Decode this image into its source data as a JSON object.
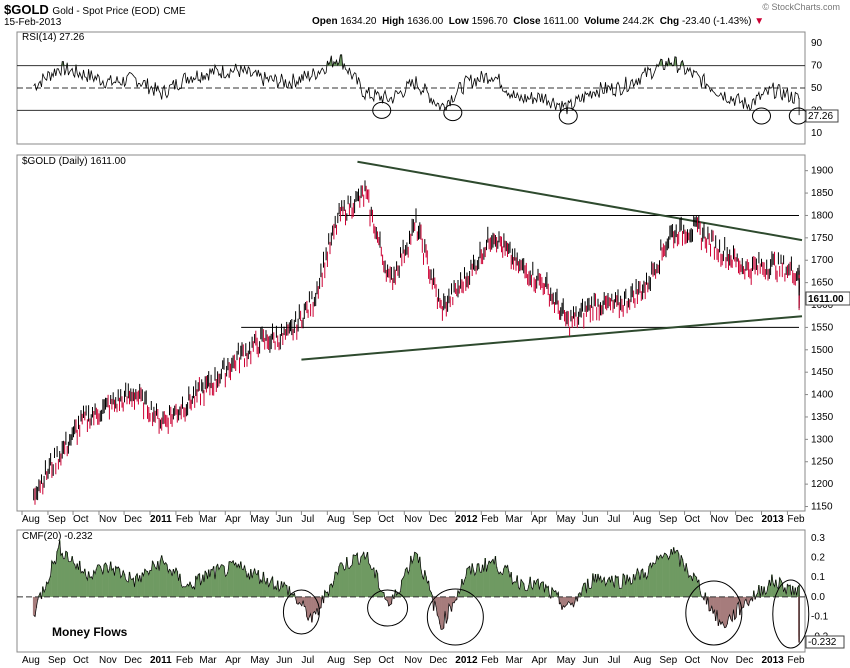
{
  "header": {
    "symbol": "$GOLD",
    "name": "Gold - Spot Price (EOD)",
    "exchange": "CME",
    "date": "15-Feb-2013",
    "open_label": "Open",
    "open": "1634.20",
    "high_label": "High",
    "high": "1636.00",
    "low_label": "Low",
    "low": "1596.70",
    "close_label": "Close",
    "close": "1611.00",
    "volume_label": "Volume",
    "volume": "244.2K",
    "chg_label": "Chg",
    "chg": "-23.40 (-1.43%)",
    "chg_arrow": "▼",
    "brand": "© StockCharts.com"
  },
  "colors": {
    "up": "#000000",
    "down": "#cc0033",
    "rsi_fill": "#6f9a62",
    "cmf_pos": "#6f9a62",
    "cmf_neg": "#a67c7c",
    "trend": "#2e4a2e"
  },
  "chart_data": [
    {
      "type": "line",
      "panel": "rsi",
      "label": "RSI(14) 27.26",
      "last_value_label": "27.26",
      "y_ticks": [
        10,
        30,
        50,
        70,
        90
      ],
      "ylim": [
        0,
        100
      ],
      "reference_lines": [
        30,
        50,
        70
      ],
      "x": [
        "2010-08",
        "2010-09",
        "2010-10",
        "2010-11",
        "2010-12",
        "2011-01",
        "2011-02",
        "2011-03",
        "2011-04",
        "2011-05",
        "2011-06",
        "2011-07",
        "2011-08",
        "2011-09",
        "2011-10",
        "2011-11",
        "2011-12",
        "2012-01",
        "2012-02",
        "2012-03",
        "2012-04",
        "2012-05",
        "2012-06",
        "2012-07",
        "2012-08",
        "2012-09",
        "2012-10",
        "2012-11",
        "2012-12",
        "2013-01",
        "2013-02",
        "2013-02-15"
      ],
      "values": [
        52,
        68,
        62,
        55,
        58,
        45,
        60,
        64,
        66,
        58,
        55,
        62,
        78,
        45,
        40,
        55,
        33,
        55,
        62,
        40,
        42,
        32,
        48,
        50,
        62,
        74,
        60,
        45,
        35,
        48,
        40,
        27.26
      ]
    },
    {
      "type": "line",
      "panel": "price",
      "label": "$GOLD (Daily) 1611.00",
      "last_value_label": "1611.00",
      "y_ticks": [
        1150,
        1200,
        1250,
        1300,
        1350,
        1400,
        1450,
        1500,
        1550,
        1600,
        1650,
        1700,
        1750,
        1800,
        1850,
        1900
      ],
      "ylim": [
        1140,
        1935
      ],
      "x_tick_labels": [
        "Aug",
        "Sep",
        "Oct",
        "Nov",
        "Dec",
        "2011",
        "Feb",
        "Mar",
        "Apr",
        "May",
        "Jun",
        "Jul",
        "Aug",
        "Sep",
        "Oct",
        "Nov",
        "Dec",
        "2012",
        "Feb",
        "Mar",
        "Apr",
        "May",
        "Jun",
        "Jul",
        "Aug",
        "Sep",
        "Oct",
        "Nov",
        "Dec",
        "2013",
        "Feb"
      ],
      "x": [
        "2010-08",
        "2010-09",
        "2010-10",
        "2010-11",
        "2010-12",
        "2011-01",
        "2011-02",
        "2011-03",
        "2011-04",
        "2011-05",
        "2011-06",
        "2011-07",
        "2011-08",
        "2011-09",
        "2011-10",
        "2011-11",
        "2011-12",
        "2012-01",
        "2012-02",
        "2012-03",
        "2012-04",
        "2012-05",
        "2012-06",
        "2012-07",
        "2012-08",
        "2012-09",
        "2012-10",
        "2012-11",
        "2012-12",
        "2013-01",
        "2013-02",
        "2013-02-15"
      ],
      "values": [
        1185,
        1265,
        1345,
        1375,
        1400,
        1340,
        1380,
        1425,
        1480,
        1520,
        1530,
        1610,
        1800,
        1850,
        1650,
        1780,
        1590,
        1660,
        1760,
        1690,
        1650,
        1560,
        1600,
        1600,
        1640,
        1760,
        1770,
        1720,
        1680,
        1690,
        1670,
        1611
      ],
      "horizontal_lines": [
        1800,
        1550
      ],
      "trendlines": [
        {
          "from": [
            "2011-09-06",
            1920
          ],
          "to": [
            "2013-02-15",
            1745
          ]
        },
        {
          "from": [
            "2011-07-01",
            1478
          ],
          "to": [
            "2013-02-15",
            1575
          ]
        }
      ]
    },
    {
      "type": "area",
      "panel": "cmf",
      "label": "CMF(20) -0.232",
      "last_value_label": "-0.232",
      "annotation": "Money Flows",
      "y_ticks": [
        0.3,
        0.2,
        0.1,
        0.0,
        -0.1,
        -0.2
      ],
      "ylim": [
        -0.28,
        0.34
      ],
      "x": [
        "2010-08",
        "2010-09",
        "2010-10",
        "2010-11",
        "2010-12",
        "2011-01",
        "2011-02",
        "2011-03",
        "2011-04",
        "2011-05",
        "2011-06",
        "2011-07",
        "2011-08",
        "2011-09",
        "2011-10",
        "2011-11",
        "2011-12",
        "2012-01",
        "2012-02",
        "2012-03",
        "2012-04",
        "2012-05",
        "2012-06",
        "2012-07",
        "2012-08",
        "2012-09",
        "2012-10",
        "2012-11",
        "2012-12",
        "2013-01",
        "2013-02",
        "2013-02-15"
      ],
      "values": [
        -0.08,
        0.25,
        0.12,
        0.15,
        0.08,
        0.18,
        0.05,
        0.12,
        0.15,
        0.1,
        0.04,
        -0.12,
        0.15,
        0.22,
        -0.05,
        0.24,
        -0.15,
        0.12,
        0.18,
        0.08,
        0.05,
        -0.06,
        0.1,
        0.08,
        0.12,
        0.24,
        0.08,
        -0.15,
        -0.02,
        0.08,
        0.02,
        -0.232
      ]
    }
  ],
  "x_axis_labels": [
    "Aug",
    "Sep",
    "Oct",
    "Nov",
    "Dec",
    "2011",
    "Feb",
    "Mar",
    "Apr",
    "May",
    "Jun",
    "Jul",
    "Aug",
    "Sep",
    "Oct",
    "Nov",
    "Dec",
    "2012",
    "Feb",
    "Mar",
    "Apr",
    "May",
    "Jun",
    "Jul",
    "Aug",
    "Sep",
    "Oct",
    "Nov",
    "Dec",
    "2013",
    "Feb"
  ]
}
